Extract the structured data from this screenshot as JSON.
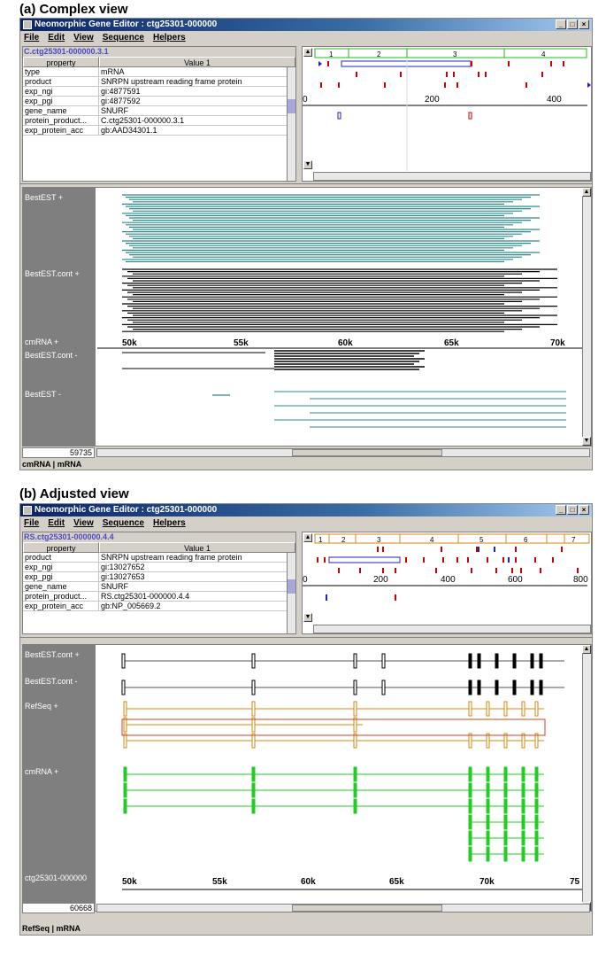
{
  "panel_a": {
    "caption": "(a) Complex view",
    "window_title": "Neomorphic Gene Editor : ctg25301-000000",
    "menu": [
      "File",
      "Edit",
      "View",
      "Sequence",
      "Helpers"
    ],
    "properties_title": "C.ctg25301-000000.3.1",
    "col_property": "property",
    "col_value": "Value 1",
    "rows": [
      {
        "k": "type",
        "v": "mRNA"
      },
      {
        "k": "product",
        "v": "SNRPN upstream reading frame protein"
      },
      {
        "k": "exp_ngi",
        "v": "gi:4877591"
      },
      {
        "k": "exp_pgi",
        "v": "gi:4877592"
      },
      {
        "k": "gene_name",
        "v": "SNURF"
      },
      {
        "k": "protein_product...",
        "v": "C.ctg25301-000000.3.1"
      },
      {
        "k": "exp_protein_acc",
        "v": "gb:AAD34301.1"
      }
    ],
    "exon_numbers": [
      "1",
      "2",
      "3",
      "4"
    ],
    "scale_ticks": [
      "0",
      "200",
      "400"
    ],
    "track_labels": [
      "BestEST +",
      "BestEST.cont +",
      "cmRNA +",
      "BestEST.cont -",
      "BestEST -"
    ],
    "axis_ticks": [
      "50k",
      "55k",
      "60k",
      "65k",
      "70k"
    ],
    "position": "59735",
    "status": "cmRNA | mRNA"
  },
  "panel_b": {
    "caption": "(b) Adjusted view",
    "window_title": "Neomorphic Gene Editor : ctg25301-000000",
    "menu": [
      "File",
      "Edit",
      "View",
      "Sequence",
      "Helpers"
    ],
    "properties_title": "RS.ctg25301-000000.4.4",
    "col_property": "property",
    "col_value": "Value 1",
    "rows": [
      {
        "k": "product",
        "v": "SNRPN upstream reading frame protein"
      },
      {
        "k": "exp_ngi",
        "v": "gi:13027652"
      },
      {
        "k": "exp_pgi",
        "v": "gi:13027653"
      },
      {
        "k": "gene_name",
        "v": "SNURF"
      },
      {
        "k": "protein_product...",
        "v": "RS.ctg25301-000000.4.4"
      },
      {
        "k": "exp_protein_acc",
        "v": "gb:NP_005669.2"
      }
    ],
    "exon_numbers": [
      "1",
      "2",
      "3",
      "4",
      "5",
      "6",
      "7"
    ],
    "scale_ticks": [
      "0",
      "200",
      "400",
      "600",
      "800"
    ],
    "track_labels": [
      "BestEST.cont +",
      "BestEST.cont -",
      "RefSeq +",
      "cmRNA +",
      "ctg25301-000000"
    ],
    "axis_ticks": [
      "50k",
      "55k",
      "60k",
      "65k",
      "70k",
      "75"
    ],
    "position": "60668",
    "status": "RefSeq | mRNA"
  },
  "colors": {
    "est_plus": "#2b8a8a",
    "black": "#000000",
    "refseq": "#d08a10",
    "cmrna": "#22cc22",
    "red": "#cc0000",
    "blue": "#2020c0",
    "label_bg": "#7f7f7f"
  }
}
